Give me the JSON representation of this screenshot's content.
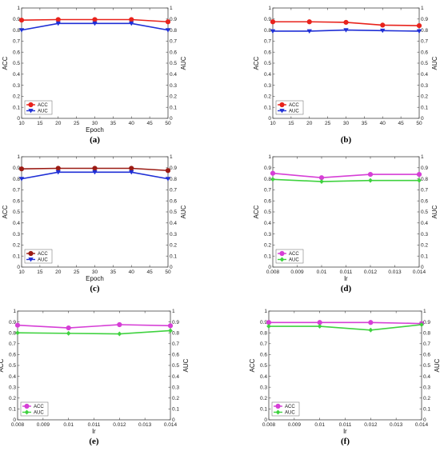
{
  "chart_data": [
    {
      "panel": "(a)",
      "type": "line",
      "xlabel": "Epoch",
      "ylabel": "ACC",
      "ylabel_right": "AUC",
      "x": [
        10,
        20,
        30,
        40,
        50
      ],
      "xlim": [
        10,
        50
      ],
      "xticks": [
        "10",
        "15",
        "20",
        "25",
        "30",
        "35",
        "40",
        "45",
        "50"
      ],
      "ylim": [
        0,
        1
      ],
      "yticks": [
        "0",
        "0.1",
        "0.2",
        "0.3",
        "0.4",
        "0.5",
        "0.6",
        "0.7",
        "0.8",
        "0.9",
        "1"
      ],
      "legend_position": "bottom-left",
      "series": [
        {
          "name": "ACC",
          "values": [
            0.89,
            0.895,
            0.895,
            0.895,
            0.875
          ],
          "color": "#e8231c",
          "marker": "circle"
        },
        {
          "name": "AUC",
          "values": [
            0.8,
            0.86,
            0.86,
            0.86,
            0.8
          ],
          "color": "#1f2fd6",
          "marker": "triangle-down"
        }
      ]
    },
    {
      "panel": "(b)",
      "type": "line",
      "xlabel": "",
      "ylabel": "ACC",
      "ylabel_right": "AUC",
      "x": [
        10,
        20,
        30,
        40,
        50
      ],
      "xlim": [
        10,
        50
      ],
      "xticks": [
        "10",
        "15",
        "20",
        "25",
        "30",
        "35",
        "40",
        "45",
        "50"
      ],
      "ylim": [
        0,
        1
      ],
      "yticks": [
        "0",
        "0.1",
        "0.2",
        "0.3",
        "0.4",
        "0.5",
        "0.6",
        "0.7",
        "0.8",
        "0.9",
        "1"
      ],
      "legend_position": "bottom-left",
      "series": [
        {
          "name": "ACC",
          "values": [
            0.875,
            0.875,
            0.87,
            0.845,
            0.84
          ],
          "color": "#e8231c",
          "marker": "circle"
        },
        {
          "name": "AUC",
          "values": [
            0.79,
            0.79,
            0.8,
            0.795,
            0.79
          ],
          "color": "#1f2fd6",
          "marker": "triangle-down"
        }
      ]
    },
    {
      "panel": "(c)",
      "type": "line",
      "xlabel": "Epoch",
      "ylabel": "ACC",
      "ylabel_right": "AUC",
      "x": [
        10,
        20,
        30,
        40,
        50
      ],
      "xlim": [
        10,
        50
      ],
      "xticks": [
        "10",
        "15",
        "20",
        "25",
        "30",
        "35",
        "40",
        "45",
        "50"
      ],
      "ylim": [
        0,
        1
      ],
      "yticks": [
        "0",
        "0.1",
        "0.2",
        "0.3",
        "0.4",
        "0.5",
        "0.6",
        "0.7",
        "0.8",
        "0.9",
        "1"
      ],
      "legend_position": "bottom-left",
      "series": [
        {
          "name": "ACC",
          "values": [
            0.89,
            0.895,
            0.895,
            0.895,
            0.875
          ],
          "color": "#9b1b14",
          "marker": "circle"
        },
        {
          "name": "AUC",
          "values": [
            0.8,
            0.86,
            0.86,
            0.86,
            0.8
          ],
          "color": "#1f2fd6",
          "marker": "triangle-down"
        }
      ]
    },
    {
      "panel": "(d)",
      "type": "line",
      "xlabel": "lr",
      "ylabel": "ACC",
      "ylabel_right": "AUC",
      "x": [
        0.008,
        0.01,
        0.012,
        0.014
      ],
      "xlim": [
        0.008,
        0.014
      ],
      "xticks": [
        "0.008",
        "0.009",
        "0.01",
        "0.011",
        "0.012",
        "0.013",
        "0.014"
      ],
      "ylim": [
        0,
        1
      ],
      "yticks": [
        "0",
        "0.1",
        "0.2",
        "0.3",
        "0.4",
        "0.5",
        "0.6",
        "0.7",
        "0.8",
        "0.9",
        "1"
      ],
      "legend_position": "bottom-left",
      "series": [
        {
          "name": "ACC",
          "values": [
            0.85,
            0.81,
            0.84,
            0.84
          ],
          "color": "#d63fd6",
          "marker": "circle"
        },
        {
          "name": "AUC",
          "values": [
            0.795,
            0.775,
            0.785,
            0.785
          ],
          "color": "#3fd23f",
          "marker": "diamond"
        }
      ]
    },
    {
      "panel": "(e)",
      "type": "line",
      "xlabel": "lr",
      "ylabel": "ACC",
      "ylabel_right": "AUC",
      "x": [
        0.008,
        0.01,
        0.012,
        0.014
      ],
      "xlim": [
        0.008,
        0.014
      ],
      "xticks": [
        "0.008",
        "0.009",
        "0.01",
        "0.011",
        "0.012",
        "0.013",
        "0.014"
      ],
      "ylim": [
        0,
        1
      ],
      "yticks": [
        "0",
        "0.1",
        "0.2",
        "0.3",
        "0.4",
        "0.5",
        "0.6",
        "0.7",
        "0.8",
        "0.9",
        "1"
      ],
      "legend_position": "bottom-left",
      "series": [
        {
          "name": "ACC",
          "values": [
            0.87,
            0.845,
            0.875,
            0.865
          ],
          "color": "#d63fd6",
          "marker": "circle"
        },
        {
          "name": "AUC",
          "values": [
            0.8,
            0.795,
            0.79,
            0.82
          ],
          "color": "#3fd23f",
          "marker": "diamond"
        }
      ]
    },
    {
      "panel": "(f)",
      "type": "line",
      "xlabel": "lr",
      "ylabel": "ACC",
      "ylabel_right": "AUC",
      "x": [
        0.008,
        0.01,
        0.012,
        0.014
      ],
      "xlim": [
        0.008,
        0.014
      ],
      "xticks": [
        "0.008",
        "0.009",
        "0.01",
        "0.011",
        "0.012",
        "0.013",
        "0.014"
      ],
      "ylim": [
        0,
        1
      ],
      "yticks": [
        "0",
        "0.1",
        "0.2",
        "0.3",
        "0.4",
        "0.5",
        "0.6",
        "0.7",
        "0.8",
        "0.9",
        "1"
      ],
      "legend_position": "bottom-left",
      "series": [
        {
          "name": "ACC",
          "values": [
            0.895,
            0.895,
            0.895,
            0.885
          ],
          "color": "#d63fd6",
          "marker": "circle"
        },
        {
          "name": "AUC",
          "values": [
            0.86,
            0.86,
            0.825,
            0.875
          ],
          "color": "#3fd23f",
          "marker": "diamond"
        }
      ]
    }
  ]
}
